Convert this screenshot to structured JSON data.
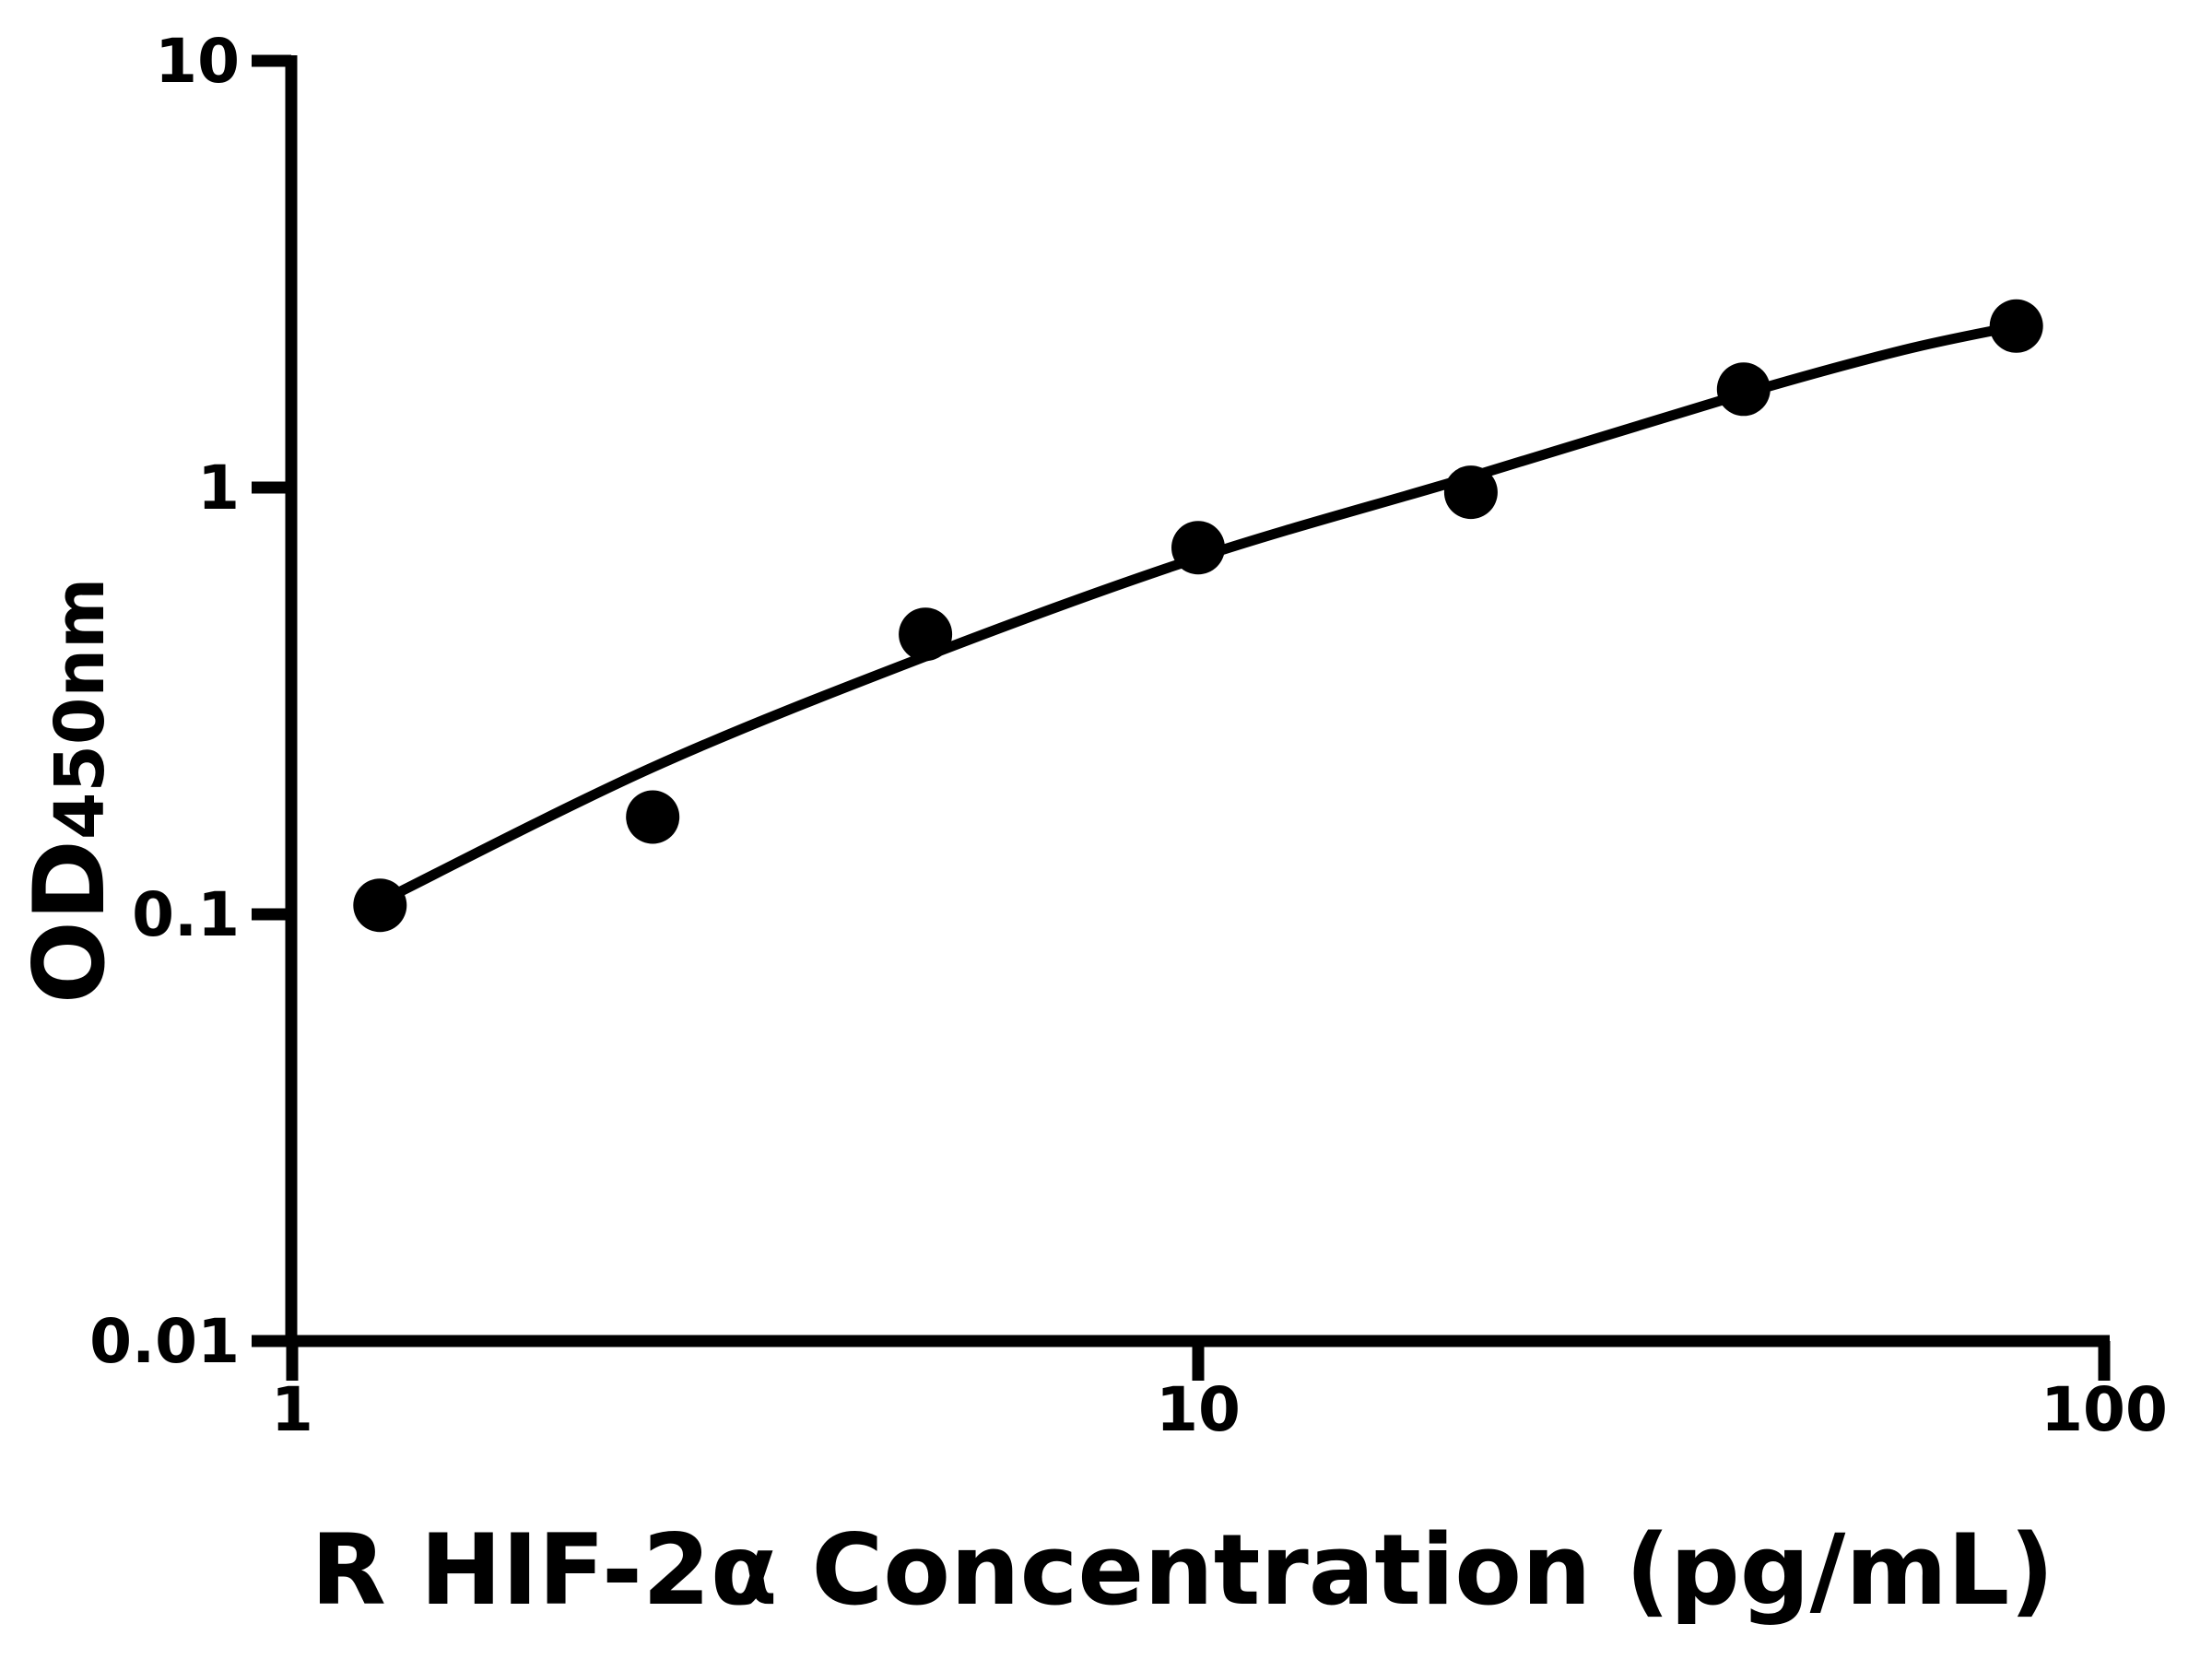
{
  "page": {
    "background": "#ffffff",
    "foreground": "#000000"
  },
  "chart_data": {
    "type": "scatter",
    "title": "",
    "xlabel": "R HIF-2α Concentration (pg/mL)",
    "ylabel_main": "OD",
    "ylabel_sub": "450nm",
    "x_scale": "log10",
    "y_scale": "log10",
    "xlim": [
      1,
      100
    ],
    "ylim": [
      0.01,
      10
    ],
    "grid": false,
    "legend": false,
    "marker_color": "#000000",
    "line_color": "#000000",
    "x_ticks": [
      {
        "value": 1,
        "label": "1"
      },
      {
        "value": 10,
        "label": "10"
      },
      {
        "value": 100,
        "label": "100"
      }
    ],
    "y_ticks": [
      {
        "value": 10,
        "label": "10"
      },
      {
        "value": 1,
        "label": "1"
      },
      {
        "value": 0.1,
        "label": "0.1"
      },
      {
        "value": 0.01,
        "label": "0.01"
      }
    ],
    "series": [
      {
        "name": "standard-points",
        "type": "scatter",
        "marker": "circle",
        "color": "#000000",
        "points": [
          {
            "x": 1.25,
            "y": 0.105
          },
          {
            "x": 2.5,
            "y": 0.169
          },
          {
            "x": 5,
            "y": 0.453
          },
          {
            "x": 10,
            "y": 0.723
          },
          {
            "x": 20,
            "y": 0.975
          },
          {
            "x": 40,
            "y": 1.7
          },
          {
            "x": 80,
            "y": 2.39
          }
        ]
      },
      {
        "name": "fit-curve",
        "type": "line",
        "color": "#000000",
        "points": [
          {
            "x": 1.25,
            "y": 0.107
          },
          {
            "x": 2.5,
            "y": 0.221
          },
          {
            "x": 5,
            "y": 0.402
          },
          {
            "x": 10,
            "y": 0.685
          },
          {
            "x": 20,
            "y": 1.06
          },
          {
            "x": 40,
            "y": 1.66
          },
          {
            "x": 60,
            "y": 2.1
          },
          {
            "x": 80,
            "y": 2.39
          }
        ]
      }
    ]
  }
}
